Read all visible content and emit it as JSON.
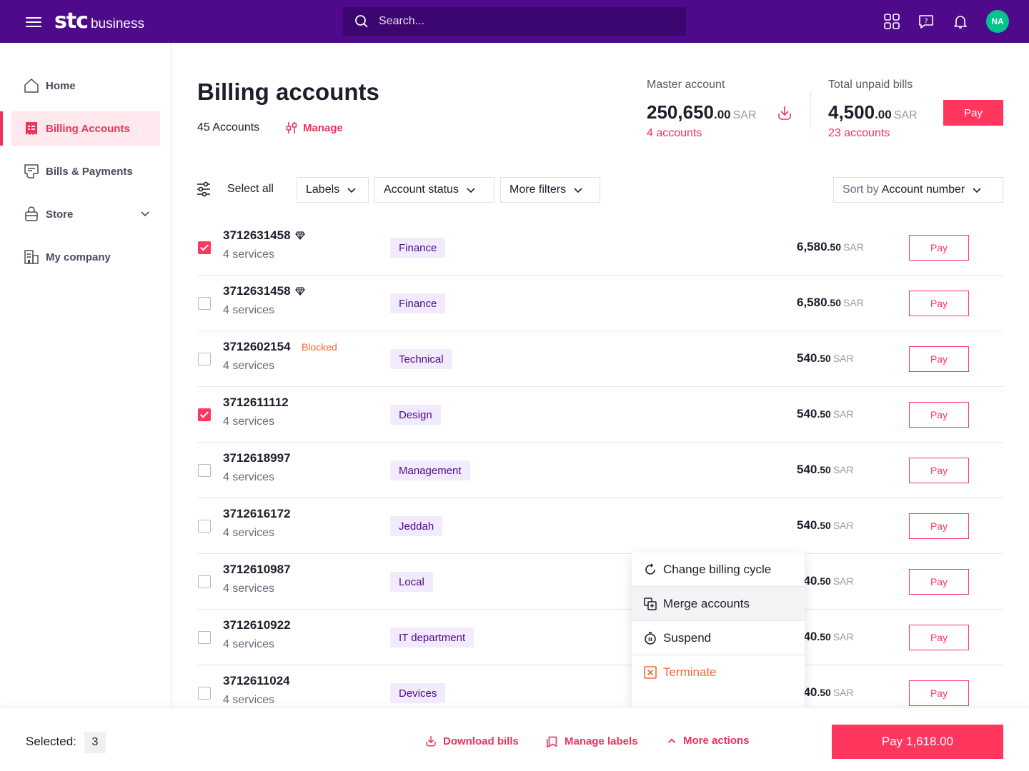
{
  "header": {
    "logo_mark": "stc",
    "logo_text": "business",
    "search_placeholder": "Search...",
    "avatar_initials": "NA"
  },
  "sidebar": {
    "items": [
      {
        "label": "Home",
        "icon": "home-icon"
      },
      {
        "label": "Billing Accounts",
        "icon": "billing-icon",
        "active": true
      },
      {
        "label": "Bills & Payments",
        "icon": "bills-icon"
      },
      {
        "label": "Store",
        "icon": "store-icon"
      },
      {
        "label": "My company",
        "icon": "company-icon"
      }
    ]
  },
  "page": {
    "title": "Billing accounts",
    "account_count": "45 Accounts",
    "manage_label": "Manage"
  },
  "stats": {
    "master": {
      "label": "Master account",
      "int": "250,650",
      "dec": ".00",
      "currency": "SAR",
      "link": "4 accounts"
    },
    "unpaid": {
      "label": "Total unpaid bills",
      "int": "4,500",
      "dec": ".00",
      "currency": "SAR",
      "link": "23 accounts"
    },
    "pay_label": "Pay"
  },
  "filters": {
    "select_all": "Select all",
    "labels": "Labels",
    "account_status": "Account status",
    "more_filters": "More filters",
    "sort_prefix": "Sort by",
    "sort_value": "Account number"
  },
  "rows": [
    {
      "number": "3712631458",
      "premium": true,
      "services": "4 services",
      "label": "Finance",
      "int": "6,580",
      "dec": ".50",
      "currency": "SAR",
      "checked": true,
      "pay": "Pay"
    },
    {
      "number": "3712631458",
      "premium": true,
      "services": "4 services",
      "label": "Finance",
      "int": "6,580",
      "dec": ".50",
      "currency": "SAR",
      "checked": false,
      "pay": "Pay"
    },
    {
      "number": "3712602154",
      "status": "Blocked",
      "services": "4 services",
      "label": "Technical",
      "int": "540",
      "dec": ".50",
      "currency": "SAR",
      "checked": false,
      "pay": "Pay"
    },
    {
      "number": "3712611112",
      "services": "4 services",
      "label": "Design",
      "int": "540",
      "dec": ".50",
      "currency": "SAR",
      "checked": true,
      "pay": "Pay"
    },
    {
      "number": "3712618997",
      "services": "4 services",
      "label": "Management",
      "int": "540",
      "dec": ".50",
      "currency": "SAR",
      "checked": false,
      "pay": "Pay"
    },
    {
      "number": "3712616172",
      "services": "4 services",
      "label": "Jeddah",
      "int": "540",
      "dec": ".50",
      "currency": "SAR",
      "checked": false,
      "pay": "Pay"
    },
    {
      "number": "3712610987",
      "services": "4 services",
      "label": "Local",
      "int": "540",
      "dec": ".50",
      "currency": "SAR",
      "checked": false,
      "pay": "Pay"
    },
    {
      "number": "3712610922",
      "services": "4 services",
      "label": "IT department",
      "int": "540",
      "dec": ".50",
      "currency": "SAR",
      "checked": false,
      "pay": "Pay"
    },
    {
      "number": "3712611024",
      "services": "4 services",
      "label": "Devices",
      "int": "540",
      "dec": ".50",
      "currency": "SAR",
      "checked": false,
      "pay": "Pay"
    }
  ],
  "menu": {
    "items": [
      {
        "label": "Change billing cycle",
        "icon": "cycle-icon"
      },
      {
        "label": "Merge accounts",
        "icon": "merge-icon"
      },
      {
        "label": "Suspend",
        "icon": "suspend-icon"
      },
      {
        "label": "Terminate",
        "icon": "terminate-icon"
      }
    ]
  },
  "bottom": {
    "selected_label": "Selected:",
    "selected_count": "3",
    "download": "Download bills",
    "manage_labels": "Manage labels",
    "more_actions": "More actions",
    "pay_total": "Pay 1,618.00"
  },
  "colors": {
    "brand": "#4f0a8c",
    "accent": "#ff375e",
    "warning": "#f06a32",
    "avatar": "#00c48c"
  }
}
